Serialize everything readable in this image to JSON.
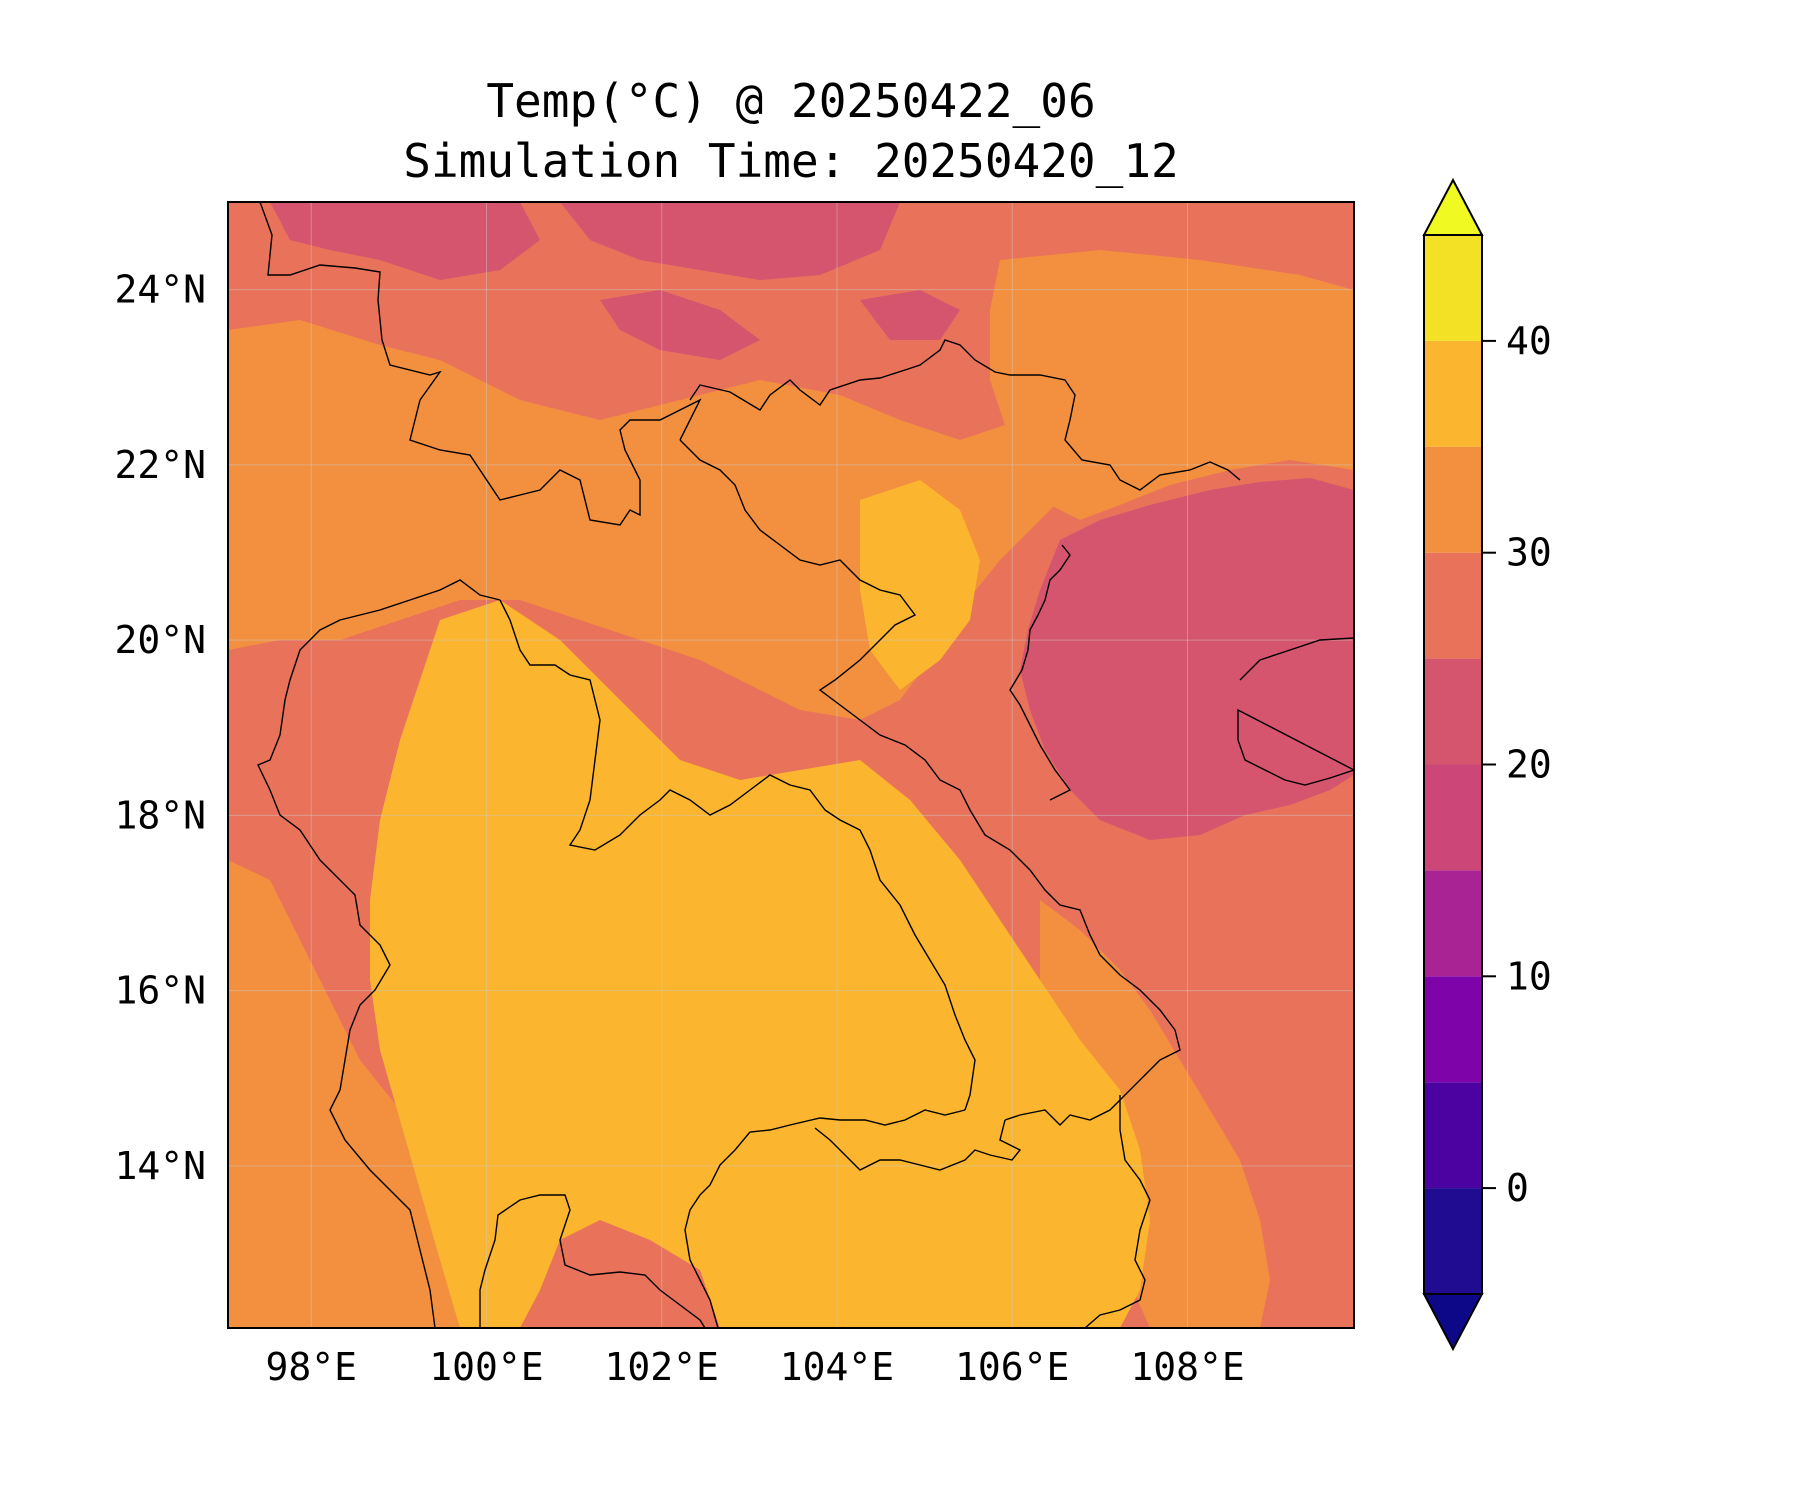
{
  "title": {
    "line1": "Temp(°C) @ 20250422_06",
    "line2": "Simulation Time: 20250420_12"
  },
  "map": {
    "lon_range": [
      97.05,
      109.9
    ],
    "lat_range": [
      12.15,
      25.0
    ],
    "lon_ticks": [
      {
        "value": 98,
        "label": "98°E"
      },
      {
        "value": 100,
        "label": "100°E"
      },
      {
        "value": 102,
        "label": "102°E"
      },
      {
        "value": 104,
        "label": "104°E"
      },
      {
        "value": 106,
        "label": "106°E"
      },
      {
        "value": 108,
        "label": "108°E"
      }
    ],
    "lat_ticks": [
      {
        "value": 24,
        "label": "24°N"
      },
      {
        "value": 22,
        "label": "22°N"
      },
      {
        "value": 20,
        "label": "20°N"
      },
      {
        "value": 18,
        "label": "18°N"
      },
      {
        "value": 16,
        "label": "16°N"
      },
      {
        "value": 14,
        "label": "14°N"
      }
    ],
    "colors": {
      "ocean": "#e8725a",
      "gulf": "#d5546e",
      "lowland": "#fbb52e",
      "midland": "#f3903f",
      "highland": "#e8725a",
      "mountain": "#d5546e",
      "border": "#000000",
      "grid": "#cccccc"
    }
  },
  "colorbar": {
    "bins": [
      -5,
      0,
      5,
      10,
      15,
      20,
      25,
      30,
      35,
      40,
      45
    ],
    "under_color": "#0d0887",
    "over_color": "#f0f921",
    "colors": [
      "#1f0c90",
      "#4c02a1",
      "#7e03a8",
      "#a92395",
      "#cc4778",
      "#d5546e",
      "#e8725a",
      "#f3903f",
      "#fbb52e",
      "#f3e125"
    ],
    "ticks": [
      {
        "value": 0,
        "label": "0"
      },
      {
        "value": 10,
        "label": "10"
      },
      {
        "value": 20,
        "label": "20"
      },
      {
        "value": 30,
        "label": "30"
      },
      {
        "value": 40,
        "label": "40"
      }
    ]
  }
}
